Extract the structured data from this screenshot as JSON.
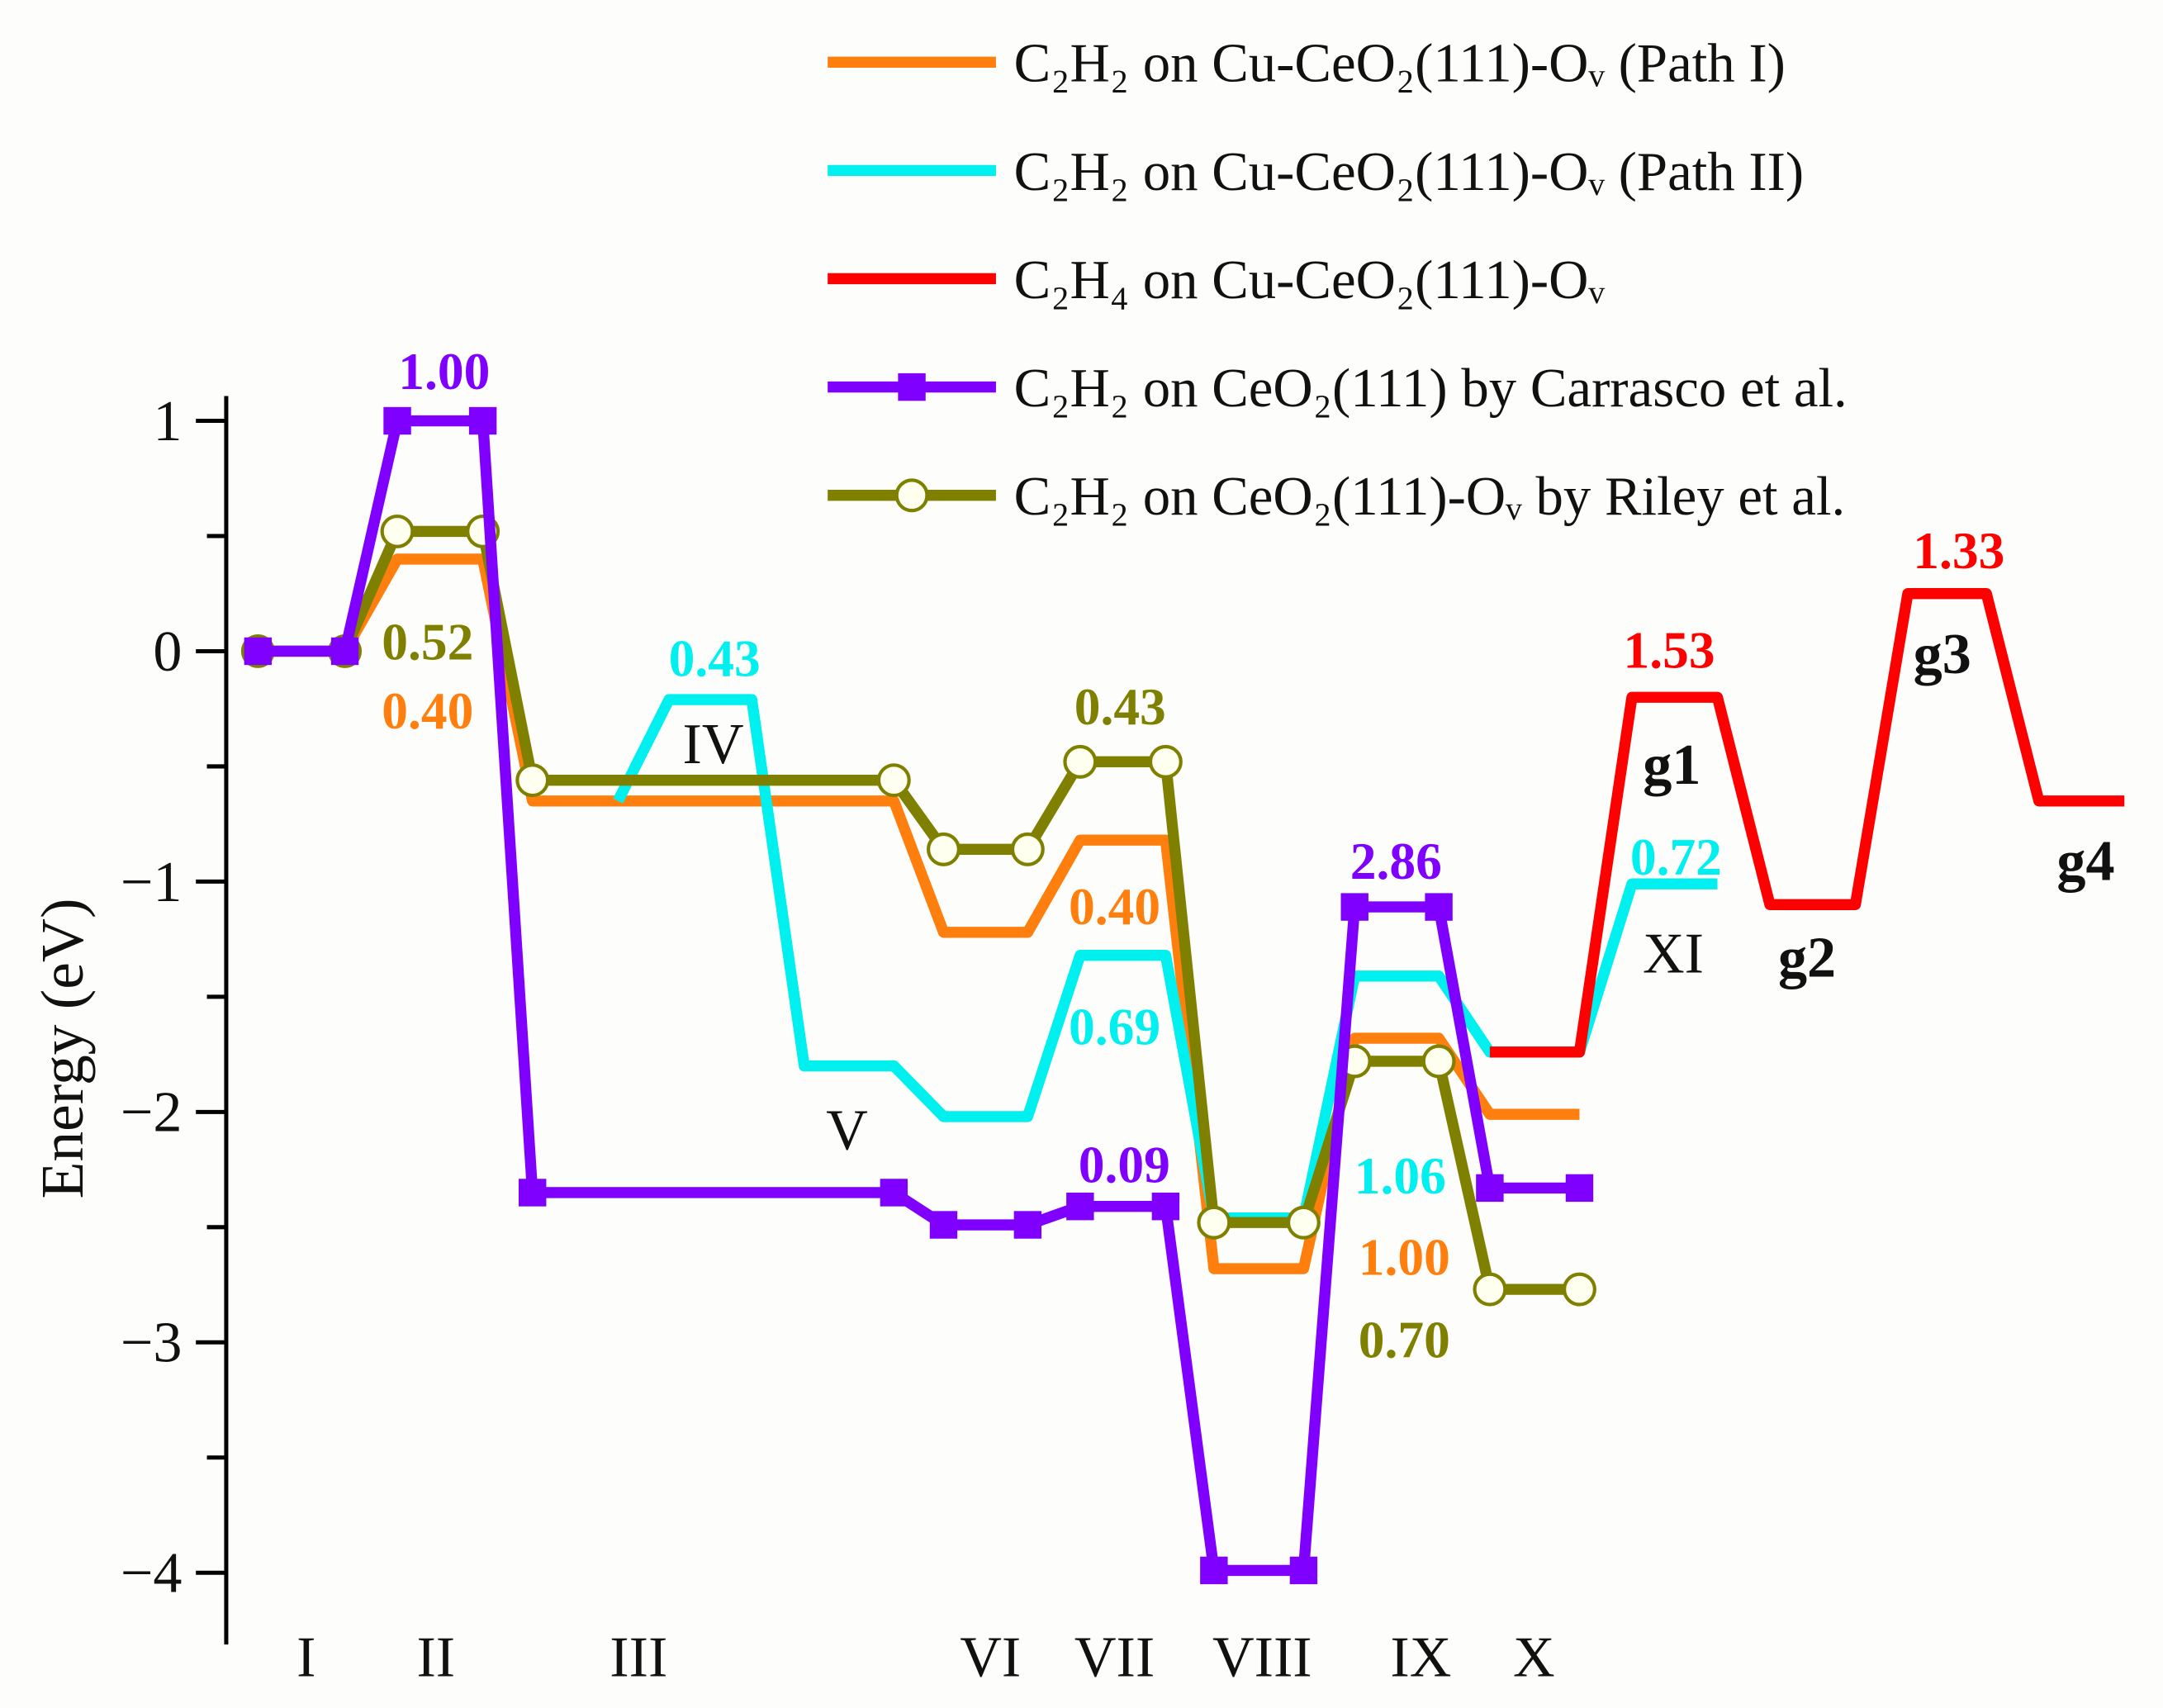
{
  "chart_data": {
    "type": "line",
    "title": "",
    "xlabel": "",
    "ylabel": "Energy (eV)",
    "ylim": [
      -4.3,
      1.1
    ],
    "yticks": [
      1,
      0,
      -1,
      -2,
      -3,
      -4
    ],
    "ytick_labels": [
      "1",
      "0",
      "−1",
      "−2",
      "−3",
      "−4"
    ],
    "grid": false,
    "legend_placement": "top-right",
    "x_state_labels": [
      "I",
      "II",
      "III",
      "VI",
      "VII",
      "VIII",
      "IX",
      "X"
    ],
    "series": [
      {
        "name": "C₂H₂ on Cu-CeO₂(111)-Oᵥ (Path I)",
        "color": "#ff7f0e",
        "marker": "none",
        "states": [
          "I",
          "II",
          "III",
          "VI",
          "VII",
          "VIII",
          "IX",
          "X"
        ],
        "values": [
          0,
          0.4,
          -0.65,
          -1.22,
          -0.82,
          -2.68,
          -1.68,
          -2.01
        ]
      },
      {
        "name": "C₂H₂ on Cu-CeO₂(111)-Oᵥ (Path II)",
        "color": "#00f0f0",
        "marker": "none",
        "states": [
          "III",
          "IV",
          "V",
          "VI",
          "VII",
          "VIII",
          "IX",
          "X",
          "XI"
        ],
        "values": [
          -0.65,
          -0.21,
          -1.8,
          -2.02,
          -1.32,
          -2.46,
          -1.41,
          -1.74,
          -1.01
        ]
      },
      {
        "name": "C₂H₄ on Cu-CeO₂(111)-Oᵥ",
        "color": "#ff0000",
        "marker": "none",
        "states": [
          "X",
          "g1",
          "g2",
          "g3",
          "g4"
        ],
        "values": [
          -1.74,
          -0.2,
          -1.1,
          0.25,
          -0.65
        ]
      },
      {
        "name": "C₂H₂ on CeO₂(111) by Carrasco et al.",
        "color": "#7f00ff",
        "marker": "square",
        "states": [
          "I",
          "II",
          "III",
          "VI",
          "VII",
          "VIII",
          "IX",
          "X"
        ],
        "values": [
          0,
          1.0,
          -2.35,
          -2.49,
          -2.41,
          -3.99,
          -1.11,
          -2.33
        ]
      },
      {
        "name": "C₂H₂ on CeO₂(111)-Oᵥ by Riley et al.",
        "color": "#808000",
        "marker": "open-circle",
        "states": [
          "I",
          "II",
          "III",
          "VI",
          "VII",
          "VIII",
          "IX",
          "X"
        ],
        "values": [
          0,
          0.52,
          -0.56,
          -0.86,
          -0.48,
          -2.48,
          -1.78,
          -2.77
        ]
      }
    ],
    "annotations": [
      {
        "text": "1.00",
        "color": "#7f00ff"
      },
      {
        "text": "0.52",
        "color": "#808000"
      },
      {
        "text": "0.40",
        "color": "#ff7f0e"
      },
      {
        "text": "0.43",
        "color": "#00f0f0"
      },
      {
        "text": "0.43",
        "color": "#808000"
      },
      {
        "text": "0.40",
        "color": "#ff7f0e"
      },
      {
        "text": "0.69",
        "color": "#00f0f0"
      },
      {
        "text": "0.09",
        "color": "#7f00ff"
      },
      {
        "text": "2.86",
        "color": "#7f00ff"
      },
      {
        "text": "1.06",
        "color": "#00f0f0"
      },
      {
        "text": "1.00",
        "color": "#ff7f0e"
      },
      {
        "text": "0.70",
        "color": "#808000"
      },
      {
        "text": "1.53",
        "color": "#ff0000"
      },
      {
        "text": "0.72",
        "color": "#00f0f0"
      },
      {
        "text": "1.33",
        "color": "#ff0000"
      }
    ],
    "state_labels_in_plot": [
      {
        "text": "IV",
        "bold": false
      },
      {
        "text": "V",
        "bold": false
      },
      {
        "text": "XI",
        "bold": false
      },
      {
        "text": "g1",
        "bold": true
      },
      {
        "text": "g2",
        "bold": true
      },
      {
        "text": "g3",
        "bold": true
      },
      {
        "text": "g4",
        "bold": true
      }
    ]
  }
}
